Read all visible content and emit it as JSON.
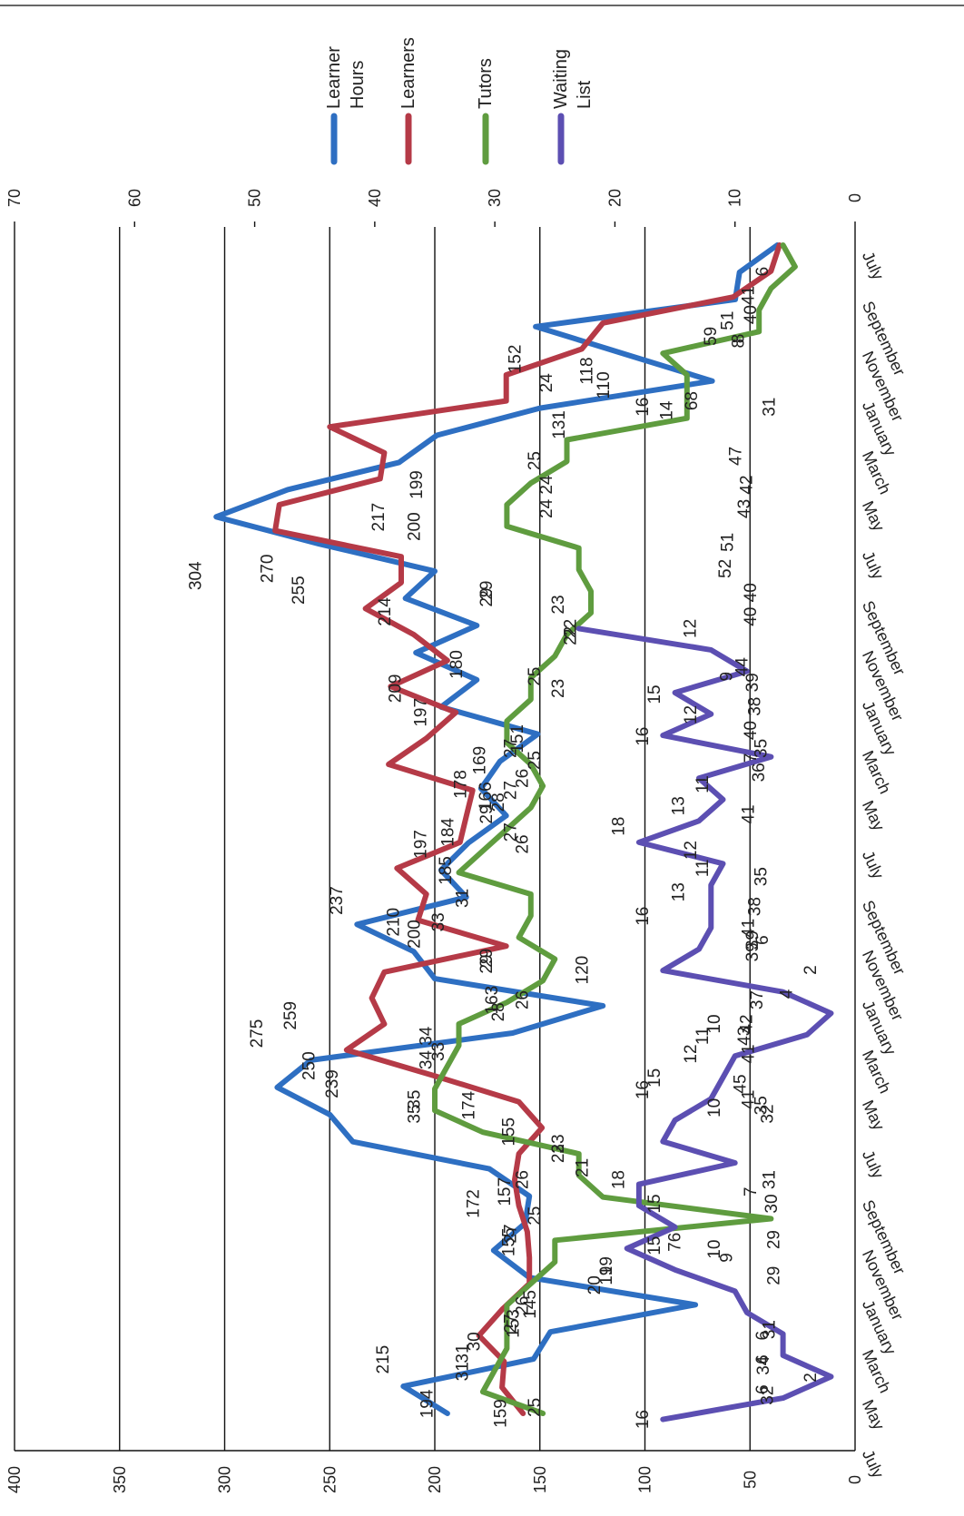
{
  "chart_data": {
    "type": "line",
    "orientation": "rotated-90-clockwise",
    "title": "",
    "xlabel": "",
    "ylabel": "",
    "grid": true,
    "legend_position": "top-right",
    "x_tick_labels": [
      "July",
      "September",
      "November",
      "January",
      "March",
      "May",
      "July",
      "September",
      "November",
      "January",
      "March",
      "May",
      "July",
      "September",
      "November",
      "January",
      "March",
      "May",
      "July",
      "September",
      "November",
      "January",
      "March",
      "May",
      "July"
    ],
    "primary_axis": {
      "ticks": [
        0,
        50,
        100,
        150,
        200,
        250,
        300,
        350,
        400
      ],
      "range": [
        0,
        400
      ]
    },
    "secondary_axis": {
      "ticks": [
        0,
        10,
        20,
        30,
        40,
        50,
        60,
        70
      ],
      "range": [
        0,
        70
      ]
    },
    "series": [
      {
        "name": "Learner Hours",
        "axis": "primary",
        "color": "#2e6fc2",
        "values": [
          37,
          55,
          57,
          152,
          110,
          68,
          150,
          199,
          217,
          270,
          304,
          255,
          200,
          214,
          180,
          209,
          180,
          197,
          151,
          169,
          178,
          166,
          184,
          197,
          185,
          237,
          210,
          200,
          120,
          163,
          259,
          275,
          250,
          239,
          174,
          155,
          157,
          172,
          155,
          76,
          145,
          153,
          215,
          194
        ]
      },
      {
        "name": "Learners",
        "axis": "primary",
        "color": "#b53a47",
        "values": [
          36,
          40,
          58,
          120,
          130,
          166,
          166,
          250,
          224,
          226,
          274,
          276,
          216,
          216,
          233,
          210,
          194,
          221,
          190,
          204,
          222,
          182,
          185,
          188,
          218,
          204,
          208,
          166,
          224,
          230,
          224,
          242,
          200,
          160,
          149,
          160,
          162,
          160,
          156,
          155,
          155,
          168,
          179,
          167,
          168,
          158
        ]
      },
      {
        "name": "Tutors",
        "axis": "secondary",
        "color": "#5f9c3f",
        "values": [
          6,
          5,
          7,
          8,
          8,
          16,
          14,
          14,
          14,
          24,
          24,
          27,
          29,
          29,
          23,
          23,
          22,
          22,
          24,
          25,
          27,
          27,
          29,
          29,
          27,
          26,
          27,
          29,
          31,
          33,
          27,
          27,
          28,
          25,
          26,
          29,
          33,
          33,
          34,
          35,
          35,
          31,
          23,
          23,
          21,
          7,
          25,
          25,
          27,
          29,
          29,
          29,
          30,
          31,
          26
        ]
      },
      {
        "name": "Waiting List",
        "axis": "secondary",
        "color": "#5c4fb2",
        "values": [
          23,
          12,
          9,
          15,
          12,
          16,
          7,
          13,
          11,
          13,
          18,
          11,
          12,
          12,
          12,
          13,
          16,
          6,
          2,
          4,
          10,
          11,
          12,
          15,
          16,
          10,
          18,
          18,
          15,
          19,
          15,
          10,
          9,
          6,
          6,
          2,
          6,
          16
        ]
      }
    ],
    "data_labels": [
      {
        "series": "Learner Hours",
        "t": 0.042,
        "v": 41
      },
      {
        "series": "Learner Hours",
        "t": 0.063,
        "v": 51
      },
      {
        "series": "Learner Hours",
        "t": 0.076,
        "v": 59
      },
      {
        "series": "Learner Hours",
        "t": 0.095,
        "v": 152
      },
      {
        "series": "Learner Hours",
        "t": 0.105,
        "v": 118
      },
      {
        "series": "Learner Hours",
        "t": 0.117,
        "v": 110
      },
      {
        "series": "Learner Hours",
        "t": 0.13,
        "v": 68
      },
      {
        "series": "Learner Hours",
        "t": 0.15,
        "v": 131
      },
      {
        "series": "Learner Hours",
        "t": 0.2,
        "v": 199
      },
      {
        "series": "Learner Hours",
        "t": 0.227,
        "v": 217
      },
      {
        "series": "Learner Hours",
        "t": 0.27,
        "v": 270
      },
      {
        "series": "Learner Hours",
        "t": 0.276,
        "v": 304
      },
      {
        "series": "Learner Hours",
        "t": 0.288,
        "v": 255
      },
      {
        "series": "Learner Hours",
        "t": 0.235,
        "v": 200
      },
      {
        "series": "Learner Hours",
        "t": 0.306,
        "v": 214
      },
      {
        "series": "Learner Hours",
        "t": 0.35,
        "v": 180
      },
      {
        "series": "Learner Hours",
        "t": 0.37,
        "v": 209
      },
      {
        "series": "Learner Hours",
        "t": 0.39,
        "v": 197
      },
      {
        "series": "Learner Hours",
        "t": 0.412,
        "v": 151
      },
      {
        "series": "Learner Hours",
        "t": 0.43,
        "v": 169
      },
      {
        "series": "Learner Hours",
        "t": 0.45,
        "v": 178
      },
      {
        "series": "Learner Hours",
        "t": 0.46,
        "v": 166
      },
      {
        "series": "Learner Hours",
        "t": 0.49,
        "v": 184
      },
      {
        "series": "Learner Hours",
        "t": 0.5,
        "v": 197
      },
      {
        "series": "Learner Hours",
        "t": 0.522,
        "v": 185
      },
      {
        "series": "Learner Hours",
        "t": 0.547,
        "v": 237
      },
      {
        "series": "Learner Hours",
        "t": 0.565,
        "v": 210
      },
      {
        "series": "Learner Hours",
        "t": 0.575,
        "v": 200
      },
      {
        "series": "Learner Hours",
        "t": 0.605,
        "v": 120
      },
      {
        "series": "Learner Hours",
        "t": 0.63,
        "v": 163
      },
      {
        "series": "Learner Hours",
        "t": 0.643,
        "v": 259
      },
      {
        "series": "Learner Hours",
        "t": 0.658,
        "v": 275
      },
      {
        "series": "Learner Hours",
        "t": 0.685,
        "v": 250
      },
      {
        "series": "Learner Hours",
        "t": 0.7,
        "v": 239
      },
      {
        "series": "Learner Hours",
        "t": 0.718,
        "v": 174
      },
      {
        "series": "Learner Hours",
        "t": 0.74,
        "v": 155
      },
      {
        "series": "Learner Hours",
        "t": 0.79,
        "v": 157
      },
      {
        "series": "Learner Hours",
        "t": 0.8,
        "v": 172
      },
      {
        "series": "Learner Hours",
        "t": 0.832,
        "v": 155
      },
      {
        "series": "Learner Hours",
        "t": 0.832,
        "v": 76
      },
      {
        "series": "Learner Hours",
        "t": 0.884,
        "v": 145
      },
      {
        "series": "Learner Hours",
        "t": 0.9,
        "v": 153
      },
      {
        "series": "Learner Hours",
        "t": 0.93,
        "v": 215
      },
      {
        "series": "Learner Hours",
        "t": 0.967,
        "v": 194
      },
      {
        "series": "Learner Hours",
        "t": 0.975,
        "v": 159
      },
      {
        "series": "Learners",
        "t": 0.058,
        "v": 40
      },
      {
        "series": "Learners",
        "t": 0.135,
        "v": 31
      },
      {
        "series": "Learners",
        "t": 0.176,
        "v": 47
      },
      {
        "series": "Learners",
        "t": 0.2,
        "v": 42
      },
      {
        "series": "Learners",
        "t": 0.22,
        "v": 43
      },
      {
        "series": "Learners",
        "t": 0.248,
        "v": 51
      },
      {
        "series": "Learners",
        "t": 0.27,
        "v": 52
      },
      {
        "series": "Learners",
        "t": 0.29,
        "v": 40
      },
      {
        "series": "Learners",
        "t": 0.31,
        "v": 40
      },
      {
        "series": "Learners",
        "t": 0.352,
        "v": 44
      },
      {
        "series": "Learners",
        "t": 0.365,
        "v": 39
      },
      {
        "series": "Learners",
        "t": 0.385,
        "v": 38
      },
      {
        "series": "Learners",
        "t": 0.405,
        "v": 40
      },
      {
        "series": "Learners",
        "t": 0.42,
        "v": 35
      },
      {
        "series": "Learners",
        "t": 0.44,
        "v": 36
      },
      {
        "series": "Learners",
        "t": 0.475,
        "v": 41
      },
      {
        "series": "Learners",
        "t": 0.527,
        "v": 35
      },
      {
        "series": "Learners",
        "t": 0.552,
        "v": 38
      },
      {
        "series": "Learners",
        "t": 0.57,
        "v": 41
      },
      {
        "series": "Learners",
        "t": 0.58,
        "v": 39
      },
      {
        "series": "Learners",
        "t": 0.59,
        "v": 39
      },
      {
        "series": "Learners",
        "t": 0.63,
        "v": 37
      },
      {
        "series": "Learners",
        "t": 0.65,
        "v": 42
      },
      {
        "series": "Learners",
        "t": 0.66,
        "v": 43
      },
      {
        "series": "Learners",
        "t": 0.675,
        "v": 41
      },
      {
        "series": "Learners",
        "t": 0.7,
        "v": 45
      },
      {
        "series": "Learners",
        "t": 0.713,
        "v": 41
      },
      {
        "series": "Learners",
        "t": 0.718,
        "v": 35
      },
      {
        "series": "Learners",
        "t": 0.725,
        "v": 32
      },
      {
        "series": "Learners",
        "t": 0.78,
        "v": 31
      },
      {
        "series": "Learners",
        "t": 0.8,
        "v": 30
      },
      {
        "series": "Learners",
        "t": 0.83,
        "v": 29
      },
      {
        "series": "Learners",
        "t": 0.86,
        "v": 29
      },
      {
        "series": "Learners",
        "t": 0.905,
        "v": 31
      },
      {
        "series": "Learners",
        "t": 0.935,
        "v": 34
      },
      {
        "series": "Learners",
        "t": 0.96,
        "v": 32
      },
      {
        "series": "Tutors",
        "t": 0.022,
        "v": 6
      },
      {
        "series": "Tutors",
        "t": 0.078,
        "v": 8
      },
      {
        "series": "Tutors",
        "t": 0.082,
        "v": 8
      },
      {
        "series": "Tutors",
        "t": 0.115,
        "v": 24
      },
      {
        "series": "Tutors",
        "t": 0.138,
        "v": 14
      },
      {
        "series": "Tutors",
        "t": 0.135,
        "v": 16
      },
      {
        "series": "Tutors",
        "t": 0.18,
        "v": 25
      },
      {
        "series": "Tutors",
        "t": 0.2,
        "v": 24
      },
      {
        "series": "Tutors",
        "t": 0.22,
        "v": 24
      },
      {
        "series": "Tutors",
        "t": 0.288,
        "v": 29
      },
      {
        "series": "Tutors",
        "t": 0.294,
        "v": 29
      },
      {
        "series": "Tutors",
        "t": 0.3,
        "v": 23
      },
      {
        "series": "Tutors",
        "t": 0.32,
        "v": 22
      },
      {
        "series": "Tutors",
        "t": 0.326,
        "v": 22
      },
      {
        "series": "Tutors",
        "t": 0.36,
        "v": 25
      },
      {
        "series": "Tutors",
        "t": 0.37,
        "v": 23
      },
      {
        "series": "Tutors",
        "t": 0.42,
        "v": 27
      },
      {
        "series": "Tutors",
        "t": 0.43,
        "v": 25
      },
      {
        "series": "Tutors",
        "t": 0.445,
        "v": 26
      },
      {
        "series": "Tutors",
        "t": 0.455,
        "v": 27
      },
      {
        "series": "Tutors",
        "t": 0.465,
        "v": 28
      },
      {
        "series": "Tutors",
        "t": 0.475,
        "v": 29
      },
      {
        "series": "Tutors",
        "t": 0.49,
        "v": 27
      },
      {
        "series": "Tutors",
        "t": 0.5,
        "v": 26
      },
      {
        "series": "Tutors",
        "t": 0.545,
        "v": 31
      },
      {
        "series": "Tutors",
        "t": 0.565,
        "v": 33
      },
      {
        "series": "Tutors",
        "t": 0.595,
        "v": 29
      },
      {
        "series": "Tutors",
        "t": 0.6,
        "v": 29
      },
      {
        "series": "Tutors",
        "t": 0.63,
        "v": 26
      },
      {
        "series": "Tutors",
        "t": 0.64,
        "v": 28
      },
      {
        "series": "Tutors",
        "t": 0.66,
        "v": 34
      },
      {
        "series": "Tutors",
        "t": 0.673,
        "v": 33
      },
      {
        "series": "Tutors",
        "t": 0.68,
        "v": 34
      },
      {
        "series": "Tutors",
        "t": 0.713,
        "v": 35
      },
      {
        "series": "Tutors",
        "t": 0.725,
        "v": 35
      },
      {
        "series": "Tutors",
        "t": 0.75,
        "v": 23
      },
      {
        "series": "Tutors",
        "t": 0.758,
        "v": 23
      },
      {
        "series": "Tutors",
        "t": 0.77,
        "v": 21
      },
      {
        "series": "Tutors",
        "t": 0.78,
        "v": 26
      },
      {
        "series": "Tutors",
        "t": 0.79,
        "v": 7
      },
      {
        "series": "Tutors",
        "t": 0.81,
        "v": 25
      },
      {
        "series": "Tutors",
        "t": 0.825,
        "v": 27
      },
      {
        "series": "Tutors",
        "t": 0.852,
        "v": 19
      },
      {
        "series": "Tutors",
        "t": 0.86,
        "v": 19
      },
      {
        "series": "Tutors",
        "t": 0.868,
        "v": 20
      },
      {
        "series": "Tutors",
        "t": 0.885,
        "v": 26
      },
      {
        "series": "Tutors",
        "t": 0.9,
        "v": 27
      },
      {
        "series": "Tutors",
        "t": 0.915,
        "v": 30
      },
      {
        "series": "Tutors",
        "t": 0.925,
        "v": 31
      },
      {
        "series": "Tutors",
        "t": 0.94,
        "v": 31
      },
      {
        "series": "Tutors",
        "t": 0.97,
        "v": 25
      },
      {
        "series": "Waiting List",
        "t": 0.32,
        "v": 12
      },
      {
        "series": "Waiting List",
        "t": 0.36,
        "v": 9
      },
      {
        "series": "Waiting List",
        "t": 0.375,
        "v": 15
      },
      {
        "series": "Waiting List",
        "t": 0.392,
        "v": 12
      },
      {
        "series": "Waiting List",
        "t": 0.41,
        "v": 16
      },
      {
        "series": "Waiting List",
        "t": 0.428,
        "v": 7
      },
      {
        "series": "Waiting List",
        "t": 0.45,
        "v": 11
      },
      {
        "series": "Waiting List",
        "t": 0.468,
        "v": 13
      },
      {
        "series": "Waiting List",
        "t": 0.485,
        "v": 18
      },
      {
        "series": "Waiting List",
        "t": 0.505,
        "v": 12
      },
      {
        "series": "Waiting List",
        "t": 0.52,
        "v": 11
      },
      {
        "series": "Waiting List",
        "t": 0.54,
        "v": 13
      },
      {
        "series": "Waiting List",
        "t": 0.56,
        "v": 16
      },
      {
        "series": "Waiting List",
        "t": 0.58,
        "v": 6
      },
      {
        "series": "Waiting List",
        "t": 0.605,
        "v": 2
      },
      {
        "series": "Waiting List",
        "t": 0.625,
        "v": 4
      },
      {
        "series": "Waiting List",
        "t": 0.65,
        "v": 10
      },
      {
        "series": "Waiting List",
        "t": 0.66,
        "v": 11
      },
      {
        "series": "Waiting List",
        "t": 0.675,
        "v": 12
      },
      {
        "series": "Waiting List",
        "t": 0.695,
        "v": 15
      },
      {
        "series": "Waiting List",
        "t": 0.705,
        "v": 16
      },
      {
        "series": "Waiting List",
        "t": 0.72,
        "v": 10
      },
      {
        "series": "Waiting List",
        "t": 0.78,
        "v": 18
      },
      {
        "series": "Waiting List",
        "t": 0.8,
        "v": 15
      },
      {
        "series": "Waiting List",
        "t": 0.835,
        "v": 15
      },
      {
        "series": "Waiting List",
        "t": 0.838,
        "v": 10
      },
      {
        "series": "Waiting List",
        "t": 0.845,
        "v": 9
      },
      {
        "series": "Waiting List",
        "t": 0.91,
        "v": 6
      },
      {
        "series": "Waiting List",
        "t": 0.93,
        "v": 6
      },
      {
        "series": "Waiting List",
        "t": 0.945,
        "v": 2
      },
      {
        "series": "Waiting List",
        "t": 0.955,
        "v": 6
      },
      {
        "series": "Waiting List",
        "t": 0.98,
        "v": 16
      }
    ]
  }
}
